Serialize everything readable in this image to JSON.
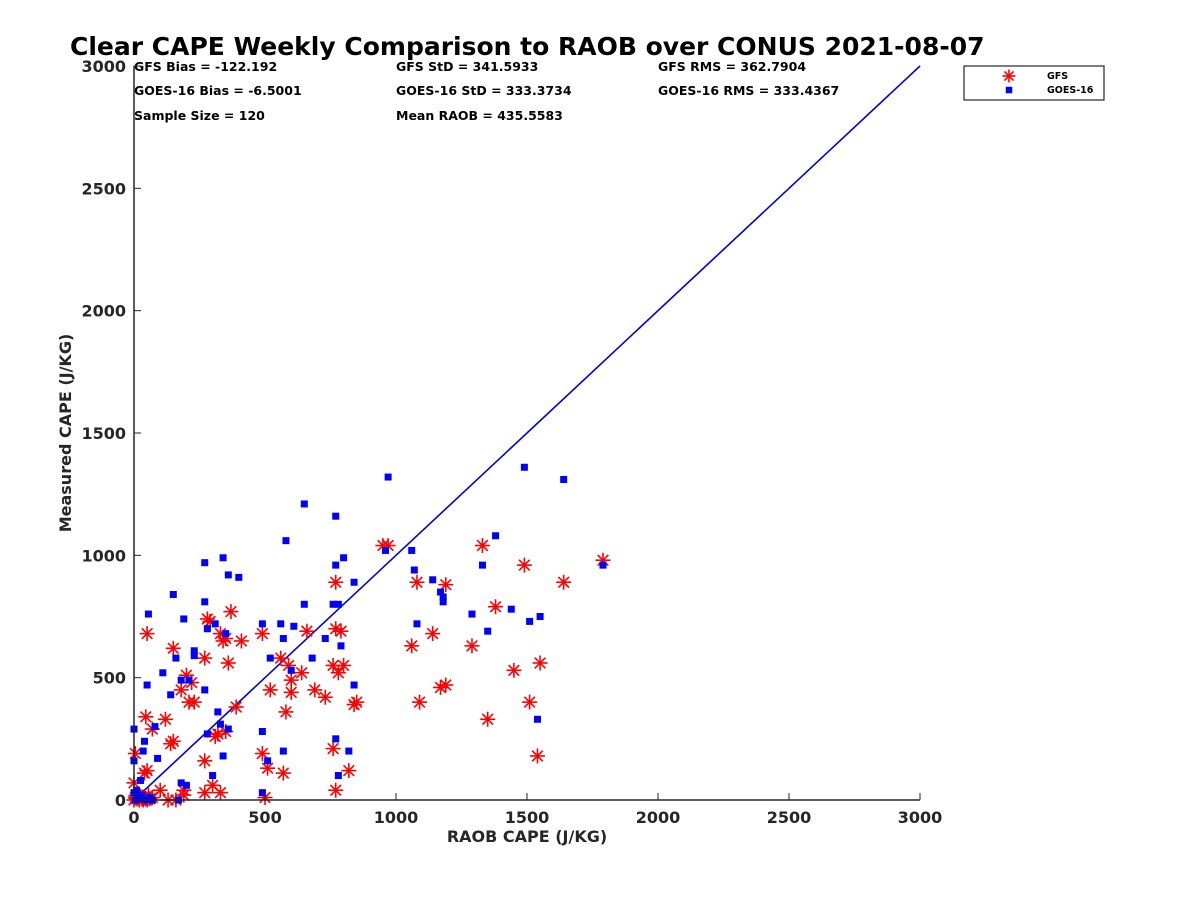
{
  "chart_data": {
    "type": "scatter",
    "title": "Clear CAPE Weekly Comparison to RAOB over CONUS 2021-08-07",
    "xlabel": "RAOB CAPE (J/KG)",
    "ylabel": "Measured CAPE (J/KG)",
    "xlim": [
      0,
      3000
    ],
    "ylim": [
      0,
      3000
    ],
    "xticks": [
      "0",
      "500",
      "1000",
      "1500",
      "2000",
      "2500",
      "3000"
    ],
    "yticks": [
      "0",
      "500",
      "1000",
      "1500",
      "2000",
      "2500",
      "3000"
    ],
    "grid": false,
    "legend_position": "top-right (outside plot)",
    "stats": [
      [
        "GFS Bias = -122.192",
        "GFS StD = 341.5933",
        "GFS RMS = 362.7904"
      ],
      [
        "GOES-16 Bias = -6.5001",
        "GOES-16 StD = 333.3734",
        "GOES-16 RMS = 333.4367"
      ],
      [
        "Sample Size = 120",
        "Mean RAOB = 435.5583",
        ""
      ]
    ],
    "reference_line": {
      "from": [
        0,
        0
      ],
      "to": [
        3000,
        3000
      ],
      "color": "#0000dd"
    },
    "series": [
      {
        "name": "GFS",
        "marker": "asterisk",
        "color": "#ff0000",
        "points": [
          [
            0,
            0
          ],
          [
            5,
            10
          ],
          [
            10,
            5
          ],
          [
            15,
            20
          ],
          [
            20,
            0
          ],
          [
            25,
            15
          ],
          [
            30,
            5
          ],
          [
            35,
            0
          ],
          [
            40,
            10
          ],
          [
            45,
            5
          ],
          [
            50,
            0
          ],
          [
            55,
            20
          ],
          [
            60,
            5
          ],
          [
            70,
            10
          ],
          [
            0,
            70
          ],
          [
            5,
            190
          ],
          [
            40,
            110
          ],
          [
            50,
            120
          ],
          [
            45,
            340
          ],
          [
            50,
            680
          ],
          [
            70,
            290
          ],
          [
            100,
            40
          ],
          [
            120,
            330
          ],
          [
            130,
            0
          ],
          [
            140,
            230
          ],
          [
            150,
            240
          ],
          [
            150,
            620
          ],
          [
            160,
            0
          ],
          [
            180,
            450
          ],
          [
            190,
            20
          ],
          [
            190,
            40
          ],
          [
            200,
            510
          ],
          [
            210,
            400
          ],
          [
            220,
            480
          ],
          [
            230,
            400
          ],
          [
            270,
            30
          ],
          [
            270,
            160
          ],
          [
            270,
            580
          ],
          [
            280,
            740
          ],
          [
            290,
            730
          ],
          [
            300,
            60
          ],
          [
            310,
            260
          ],
          [
            320,
            270
          ],
          [
            330,
            680
          ],
          [
            340,
            650
          ],
          [
            350,
            660
          ],
          [
            330,
            30
          ],
          [
            350,
            280
          ],
          [
            360,
            560
          ],
          [
            370,
            770
          ],
          [
            390,
            380
          ],
          [
            410,
            650
          ],
          [
            490,
            680
          ],
          [
            490,
            190
          ],
          [
            500,
            10
          ],
          [
            510,
            130
          ],
          [
            520,
            450
          ],
          [
            560,
            580
          ],
          [
            570,
            110
          ],
          [
            580,
            360
          ],
          [
            590,
            550
          ],
          [
            600,
            490
          ],
          [
            600,
            440
          ],
          [
            640,
            520
          ],
          [
            660,
            690
          ],
          [
            690,
            450
          ],
          [
            730,
            420
          ],
          [
            760,
            550
          ],
          [
            760,
            210
          ],
          [
            770,
            700
          ],
          [
            770,
            890
          ],
          [
            770,
            40
          ],
          [
            780,
            520
          ],
          [
            790,
            690
          ],
          [
            800,
            550
          ],
          [
            820,
            120
          ],
          [
            840,
            390
          ],
          [
            850,
            400
          ],
          [
            950,
            1040
          ],
          [
            970,
            1040
          ],
          [
            1060,
            630
          ],
          [
            1080,
            890
          ],
          [
            1090,
            400
          ],
          [
            1140,
            680
          ],
          [
            1170,
            460
          ],
          [
            1190,
            470
          ],
          [
            1190,
            880
          ],
          [
            1290,
            630
          ],
          [
            1330,
            1040
          ],
          [
            1350,
            330
          ],
          [
            1380,
            790
          ],
          [
            1450,
            530
          ],
          [
            1490,
            960
          ],
          [
            1510,
            400
          ],
          [
            1540,
            180
          ],
          [
            1550,
            560
          ],
          [
            1640,
            890
          ],
          [
            1790,
            980
          ]
        ]
      },
      {
        "name": "GOES-16",
        "marker": "square",
        "color": "#0000ff",
        "points": [
          [
            0,
            290
          ],
          [
            0,
            160
          ],
          [
            0,
            30
          ],
          [
            5,
            0
          ],
          [
            10,
            40
          ],
          [
            15,
            10
          ],
          [
            20,
            5
          ],
          [
            25,
            80
          ],
          [
            30,
            20
          ],
          [
            35,
            200
          ],
          [
            40,
            240
          ],
          [
            45,
            0
          ],
          [
            50,
            470
          ],
          [
            55,
            760
          ],
          [
            60,
            10
          ],
          [
            70,
            0
          ],
          [
            80,
            300
          ],
          [
            90,
            170
          ],
          [
            110,
            520
          ],
          [
            140,
            430
          ],
          [
            150,
            840
          ],
          [
            160,
            580
          ],
          [
            170,
            0
          ],
          [
            180,
            490
          ],
          [
            180,
            70
          ],
          [
            190,
            740
          ],
          [
            200,
            60
          ],
          [
            210,
            490
          ],
          [
            230,
            590
          ],
          [
            230,
            610
          ],
          [
            270,
            810
          ],
          [
            270,
            970
          ],
          [
            270,
            450
          ],
          [
            280,
            700
          ],
          [
            280,
            270
          ],
          [
            300,
            100
          ],
          [
            310,
            720
          ],
          [
            320,
            360
          ],
          [
            330,
            310
          ],
          [
            340,
            180
          ],
          [
            340,
            990
          ],
          [
            350,
            680
          ],
          [
            360,
            920
          ],
          [
            360,
            290
          ],
          [
            400,
            910
          ],
          [
            490,
            720
          ],
          [
            490,
            280
          ],
          [
            490,
            30
          ],
          [
            510,
            160
          ],
          [
            520,
            580
          ],
          [
            560,
            720
          ],
          [
            570,
            200
          ],
          [
            570,
            660
          ],
          [
            580,
            1060
          ],
          [
            600,
            530
          ],
          [
            610,
            710
          ],
          [
            650,
            800
          ],
          [
            650,
            1210
          ],
          [
            680,
            580
          ],
          [
            730,
            660
          ],
          [
            760,
            800
          ],
          [
            770,
            960
          ],
          [
            770,
            1160
          ],
          [
            770,
            250
          ],
          [
            780,
            100
          ],
          [
            780,
            800
          ],
          [
            790,
            630
          ],
          [
            800,
            990
          ],
          [
            820,
            200
          ],
          [
            840,
            890
          ],
          [
            840,
            470
          ],
          [
            960,
            1020
          ],
          [
            970,
            1320
          ],
          [
            1060,
            1020
          ],
          [
            1070,
            940
          ],
          [
            1080,
            720
          ],
          [
            1140,
            900
          ],
          [
            1170,
            850
          ],
          [
            1180,
            810
          ],
          [
            1180,
            830
          ],
          [
            1290,
            760
          ],
          [
            1330,
            960
          ],
          [
            1350,
            690
          ],
          [
            1380,
            1080
          ],
          [
            1440,
            780
          ],
          [
            1490,
            1360
          ],
          [
            1510,
            730
          ],
          [
            1540,
            330
          ],
          [
            1550,
            750
          ],
          [
            1640,
            1310
          ],
          [
            1790,
            960
          ]
        ]
      }
    ]
  }
}
